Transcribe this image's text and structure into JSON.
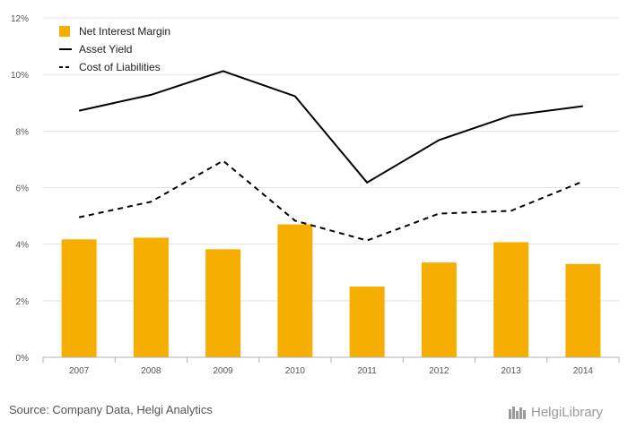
{
  "chart_data": {
    "type": "bar+line",
    "categories": [
      "2007",
      "2008",
      "2009",
      "2010",
      "2011",
      "2012",
      "2013",
      "2014"
    ],
    "series": [
      {
        "name": "Net Interest Margin",
        "kind": "bar",
        "color": "#f6ae00",
        "values": [
          4.17,
          4.23,
          3.82,
          4.7,
          2.5,
          3.35,
          4.07,
          3.3
        ]
      },
      {
        "name": "Asset Yield",
        "kind": "line",
        "style": "solid",
        "color": "#000000",
        "values": [
          8.72,
          9.28,
          10.12,
          9.23,
          6.18,
          7.68,
          8.55,
          8.88
        ]
      },
      {
        "name": "Cost of Liabilities",
        "kind": "line",
        "style": "dashed",
        "color": "#000000",
        "values": [
          4.95,
          5.5,
          6.95,
          4.83,
          4.13,
          5.08,
          5.18,
          6.22
        ]
      }
    ],
    "ylim": [
      0,
      12
    ],
    "yticks": [
      "0%",
      "2%",
      "4%",
      "6%",
      "8%",
      "10%",
      "12%"
    ],
    "grid": true,
    "legend_position": "top-left"
  },
  "footer": {
    "source": "Source: Company Data, Helgi Analytics",
    "logo_text": "HelgiLibrary"
  }
}
